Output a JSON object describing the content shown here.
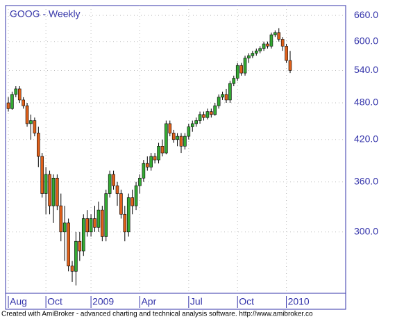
{
  "chart_data": {
    "type": "candlestick",
    "title": "GOOG - Weekly",
    "footer": "Created with AmiBroker - advanced charting and technical analysis software. http://www.amibroker.co",
    "categories": [
      "Aug",
      null,
      null,
      null,
      null,
      null,
      null,
      null,
      null,
      null,
      "Oct",
      null,
      null,
      null,
      null,
      null,
      null,
      null,
      null,
      null,
      null,
      null,
      "2009",
      null,
      null,
      null,
      null,
      null,
      null,
      null,
      null,
      null,
      null,
      null,
      null,
      "Apr",
      null,
      null,
      null,
      null,
      null,
      null,
      null,
      null,
      null,
      null,
      null,
      null,
      "Jul",
      null,
      null,
      null,
      null,
      null,
      null,
      null,
      null,
      null,
      null,
      null,
      null,
      "Oct",
      null,
      null,
      null,
      null,
      null,
      null,
      null,
      null,
      null,
      null,
      null,
      null,
      "2010",
      null
    ],
    "open": [
      480,
      470,
      495,
      505,
      485,
      475,
      445,
      450,
      430,
      395,
      345,
      370,
      330,
      365,
      330,
      300,
      310,
      265,
      260,
      290,
      280,
      315,
      300,
      315,
      305,
      325,
      295,
      345,
      370,
      355,
      345,
      320,
      300,
      340,
      330,
      355,
      365,
      385,
      380,
      395,
      390,
      410,
      400,
      445,
      430,
      420,
      425,
      410,
      425,
      440,
      445,
      450,
      460,
      455,
      465,
      460,
      475,
      490,
      495,
      485,
      515,
      525,
      550,
      535,
      565,
      570,
      575,
      580,
      585,
      595,
      590,
      615,
      620,
      605,
      590,
      560
    ],
    "high": [
      490,
      500,
      510,
      510,
      490,
      480,
      460,
      455,
      440,
      400,
      380,
      375,
      370,
      370,
      345,
      330,
      315,
      270,
      300,
      300,
      320,
      325,
      320,
      330,
      335,
      330,
      350,
      375,
      375,
      360,
      350,
      330,
      345,
      350,
      360,
      370,
      390,
      395,
      400,
      400,
      415,
      420,
      450,
      450,
      435,
      430,
      430,
      430,
      445,
      450,
      455,
      465,
      465,
      470,
      470,
      480,
      495,
      500,
      505,
      520,
      530,
      555,
      555,
      570,
      575,
      580,
      585,
      590,
      600,
      600,
      620,
      625,
      630,
      610,
      595,
      580
    ],
    "low": [
      465,
      468,
      490,
      480,
      470,
      440,
      420,
      425,
      380,
      340,
      320,
      320,
      310,
      325,
      290,
      270,
      260,
      250,
      247,
      270,
      275,
      295,
      295,
      300,
      300,
      290,
      290,
      340,
      350,
      330,
      315,
      290,
      295,
      320,
      325,
      345,
      360,
      375,
      375,
      385,
      385,
      395,
      398,
      425,
      415,
      410,
      400,
      405,
      420,
      432,
      440,
      445,
      450,
      452,
      455,
      458,
      470,
      485,
      480,
      480,
      510,
      520,
      530,
      530,
      555,
      565,
      570,
      575,
      580,
      585,
      585,
      610,
      600,
      580,
      555,
      535
    ],
    "close": [
      470,
      495,
      505,
      485,
      475,
      445,
      450,
      430,
      395,
      345,
      370,
      330,
      365,
      330,
      300,
      310,
      265,
      260,
      290,
      280,
      315,
      300,
      315,
      305,
      325,
      295,
      345,
      370,
      355,
      345,
      320,
      300,
      340,
      330,
      355,
      365,
      385,
      380,
      395,
      390,
      410,
      400,
      445,
      430,
      420,
      425,
      410,
      425,
      440,
      445,
      450,
      460,
      455,
      465,
      460,
      475,
      490,
      495,
      485,
      515,
      525,
      550,
      535,
      565,
      570,
      575,
      580,
      585,
      595,
      590,
      615,
      620,
      605,
      590,
      560,
      540
    ],
    "up_color": "#33aa33",
    "down_color": "#e0601a",
    "log_scale": true,
    "grid": true,
    "ylim": [
      240,
      684
    ],
    "yticks": [
      {
        "value": 300,
        "label": "300.0"
      },
      {
        "value": 360,
        "label": "360.0"
      },
      {
        "value": 420,
        "label": "420.0"
      },
      {
        "value": 480,
        "label": "480.0"
      },
      {
        "value": 540,
        "label": "540.0"
      },
      {
        "value": 600,
        "label": "600.0"
      },
      {
        "value": 660,
        "label": "660.0"
      }
    ]
  }
}
